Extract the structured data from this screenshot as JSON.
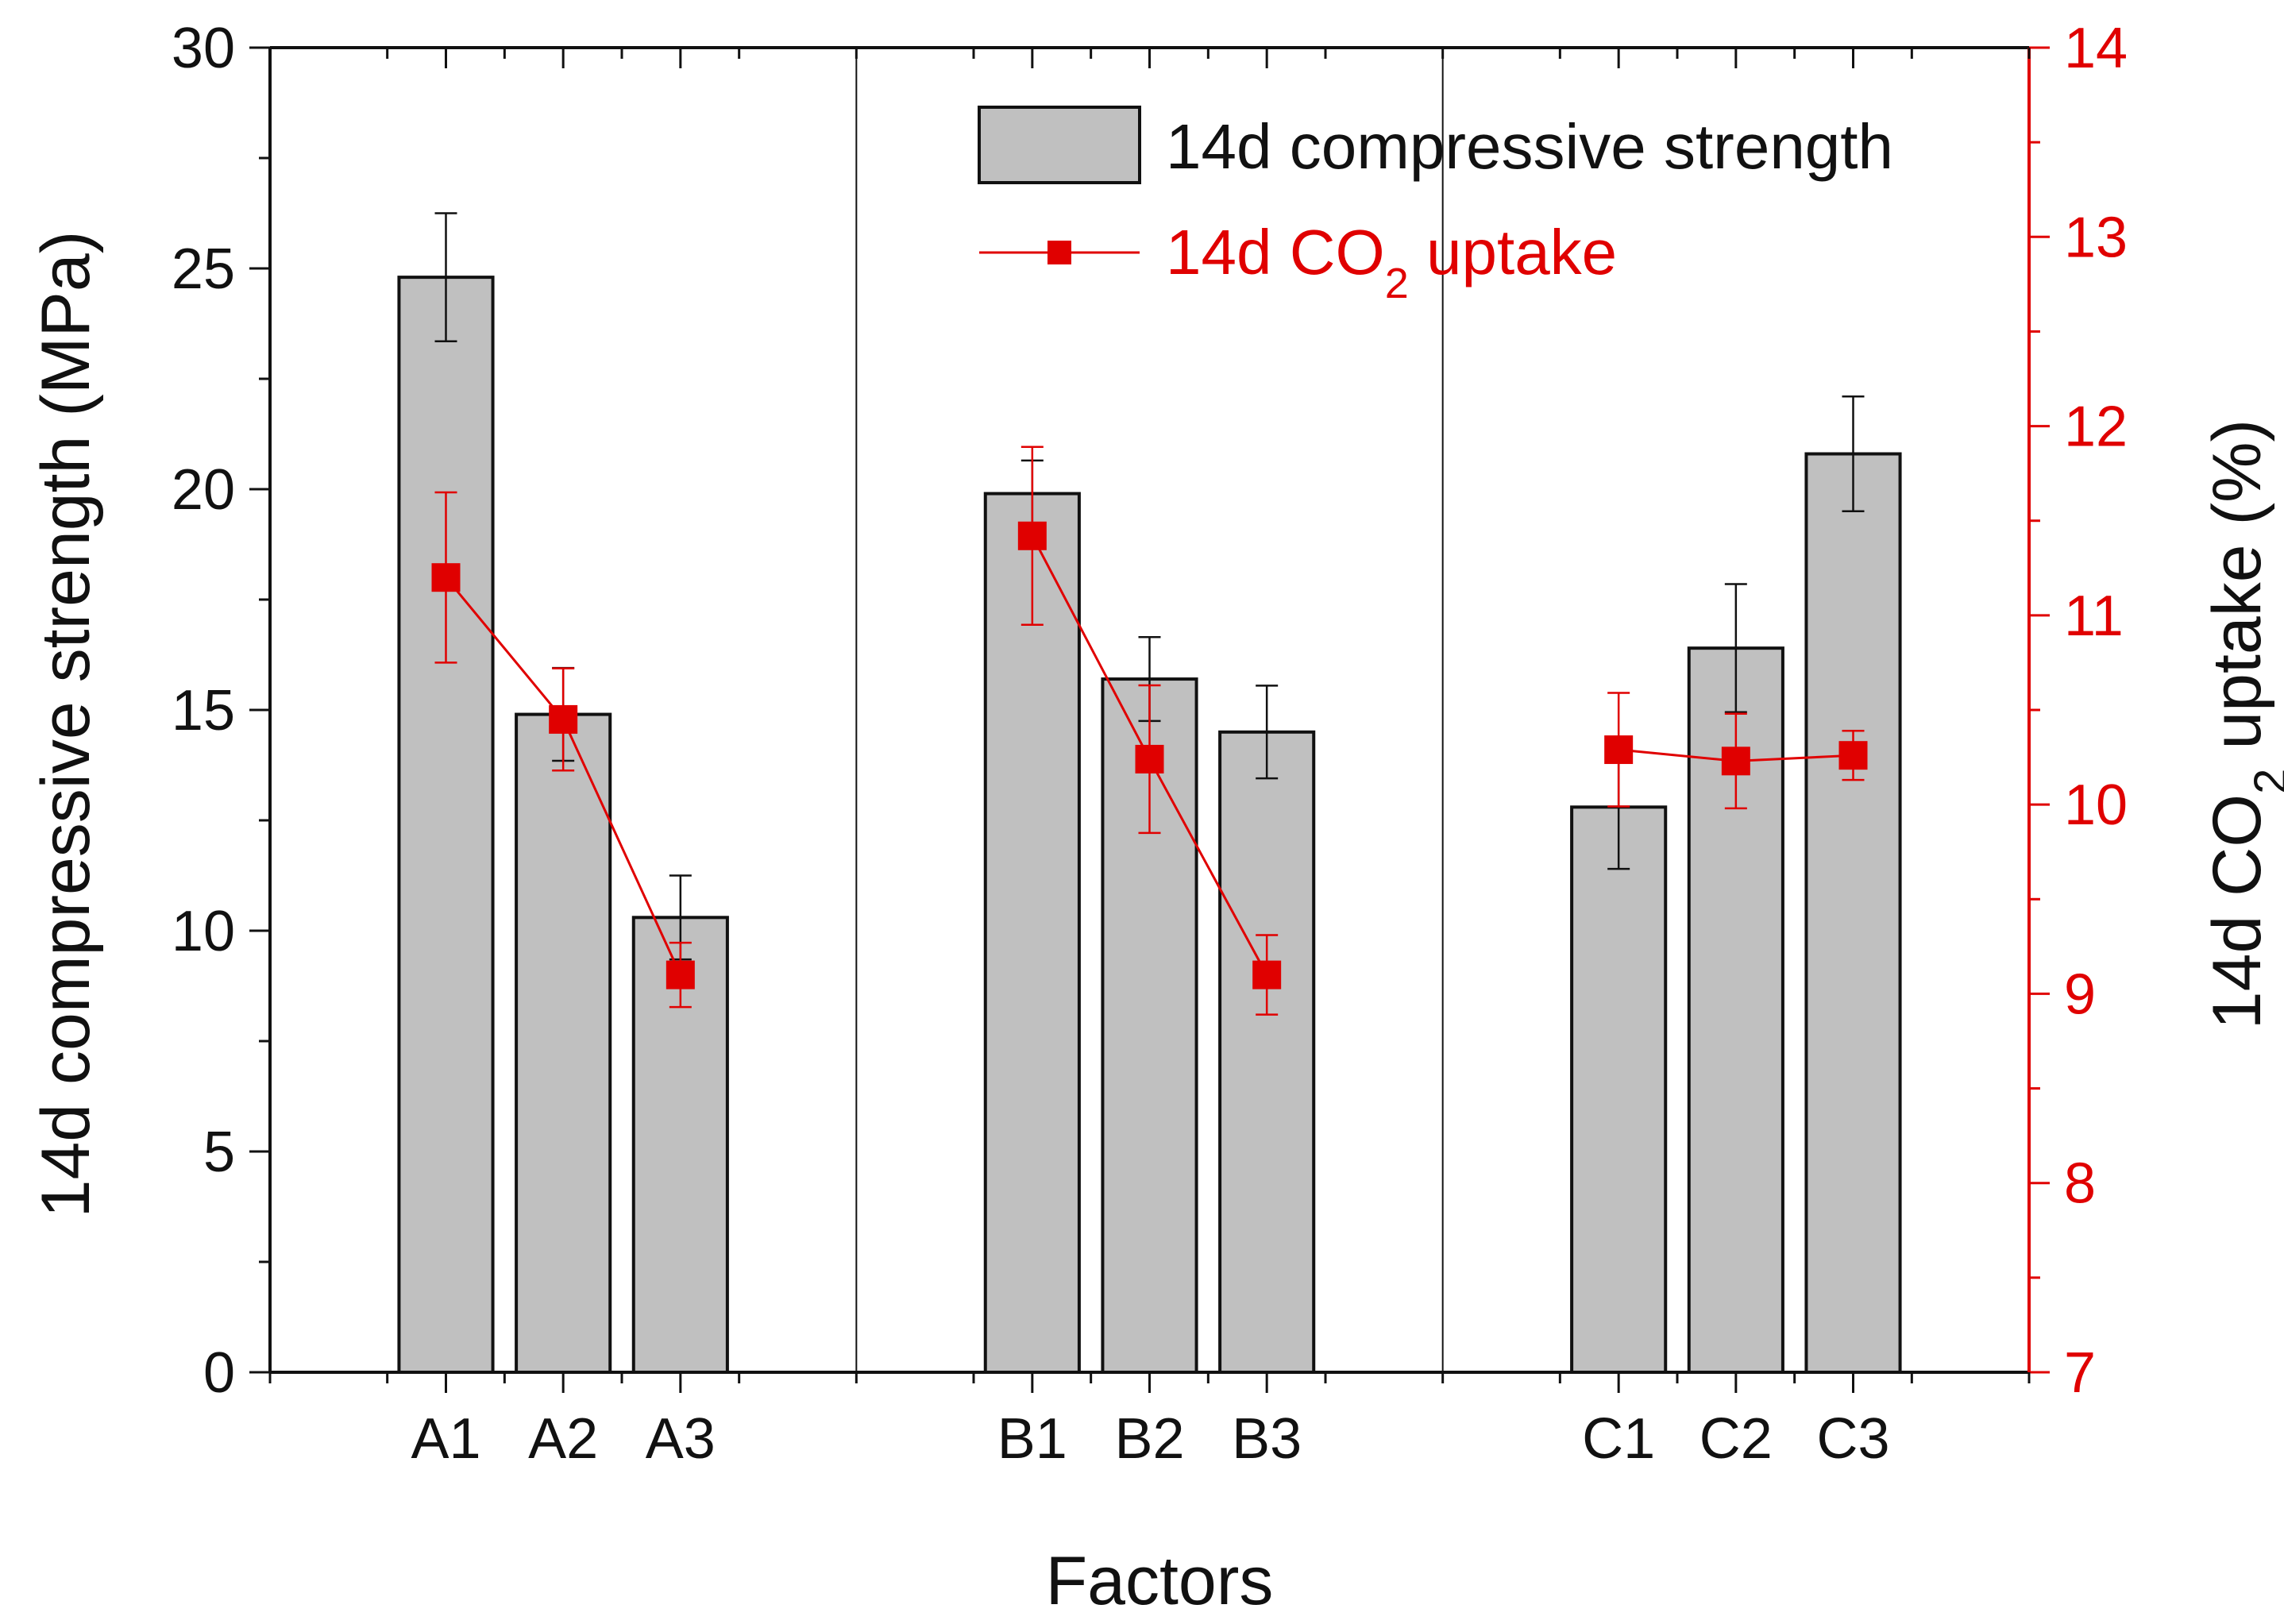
{
  "chart_data": {
    "type": "bar",
    "xlabel": "Factors",
    "ylabel": "14d compressive strength (MPa)",
    "y2label_parts": [
      "14d CO",
      "2",
      " uptake (%)"
    ],
    "ylim": [
      0,
      30
    ],
    "y2lim": [
      7,
      14
    ],
    "yticks": [
      "0",
      "5",
      "10",
      "15",
      "20",
      "25",
      "30"
    ],
    "y2ticks": [
      "7",
      "8",
      "9",
      "10",
      "11",
      "12",
      "13",
      "14"
    ],
    "categories": [
      "A1",
      "A2",
      "A3",
      "B1",
      "B2",
      "B3",
      "C1",
      "C2",
      "C3"
    ],
    "groups": [
      [
        "A1",
        "A2",
        "A3"
      ],
      [
        "B1",
        "B2",
        "B3"
      ],
      [
        "C1",
        "C2",
        "C3"
      ]
    ],
    "series": [
      {
        "name": "14d compressive strength",
        "type": "bar",
        "axis": "left",
        "color": "#c0c0c0",
        "values": [
          24.8,
          14.9,
          10.3,
          19.9,
          15.7,
          14.5,
          12.8,
          16.4,
          20.8
        ],
        "errors": [
          1.45,
          1.05,
          0.95,
          0.75,
          0.95,
          1.05,
          1.4,
          1.45,
          1.3
        ]
      },
      {
        "name": "14d CO2 uptake",
        "legend_parts": [
          "14d CO",
          "2",
          " uptake"
        ],
        "type": "line",
        "axis": "right",
        "color": "#e00000",
        "connect_within_groups": true,
        "values": [
          11.2,
          10.45,
          9.1,
          11.42,
          10.24,
          9.1,
          10.29,
          10.23,
          10.26
        ],
        "errors": [
          0.45,
          0.27,
          0.17,
          0.47,
          0.39,
          0.21,
          0.3,
          0.25,
          0.13
        ]
      }
    ],
    "legend_position": "top-right"
  }
}
